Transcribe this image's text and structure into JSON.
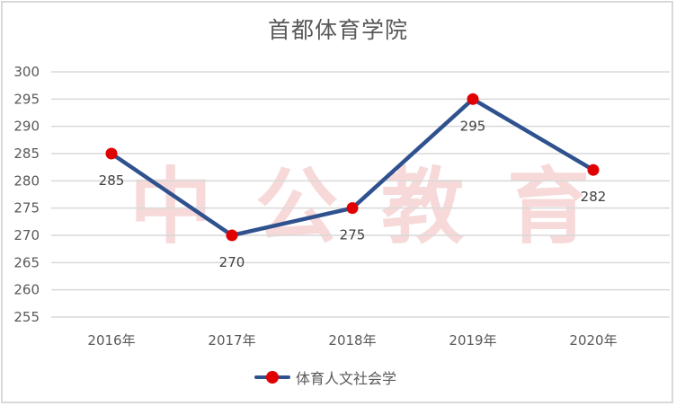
{
  "title": "首都体育学院",
  "watermark": "中公教育",
  "colors": {
    "line": "#2f528f",
    "marker": "#e00000",
    "grid": "#d9d9d9",
    "text": "#595959",
    "watermark": "#f4c6c6"
  },
  "legend": {
    "label": "体育人文社会学"
  },
  "chart_data": {
    "type": "line",
    "title": "首都体育学院",
    "categories": [
      "2016年",
      "2017年",
      "2018年",
      "2019年",
      "2020年"
    ],
    "series": [
      {
        "name": "体育人文社会学",
        "values": [
          285,
          270,
          275,
          295,
          282
        ]
      }
    ],
    "data_labels": [
      "285",
      "270",
      "275",
      "295",
      "282"
    ],
    "xlabel": "",
    "ylabel": "",
    "ylim": [
      255,
      300
    ],
    "yticks": [
      "300",
      "295",
      "290",
      "285",
      "280",
      "275",
      "270",
      "265",
      "260",
      "255"
    ],
    "grid": true,
    "legend_position": "bottom"
  }
}
